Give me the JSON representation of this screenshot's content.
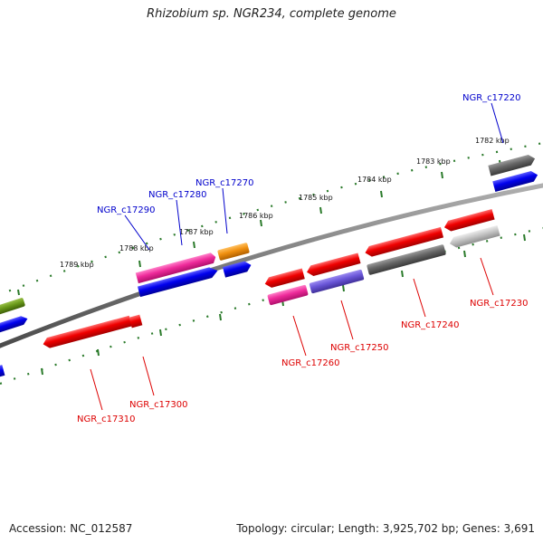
{
  "title": "Rhizobium sp. NGR234, complete genome",
  "accession": "Accession: NC_012587",
  "summary": "Topology: circular; Length: 3,925,702 bp; Genes: 3,691",
  "colors": {
    "forward_label": "#0000cc",
    "reverse_label": "#dd0000",
    "backbone": "#777777",
    "tick": "#2a7a2a"
  },
  "kbp_labels": [
    "1789 kbp",
    "1788 kbp",
    "1787 kbp",
    "1786 kbp",
    "1785 kbp",
    "1784 kbp",
    "1783 kbp",
    "1782 kbp"
  ],
  "forward_genes": [
    "NGR_c17290",
    "NGR_c17280",
    "NGR_c17270",
    "NGR_c17220"
  ],
  "reverse_genes": [
    "NGR_c17310",
    "NGR_c17300",
    "NGR_c17260",
    "NGR_c17250",
    "NGR_c17240",
    "NGR_c17230"
  ]
}
